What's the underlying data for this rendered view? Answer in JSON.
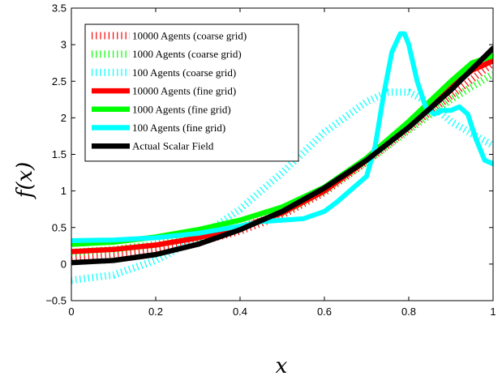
{
  "chart_data": {
    "type": "line",
    "xlabel": "x",
    "ylabel": "f(x)",
    "xlim": [
      0,
      1
    ],
    "ylim": [
      -0.5,
      3.5
    ],
    "xticks": [
      0,
      0.2,
      0.4,
      0.6,
      0.8,
      1
    ],
    "xtick_labels": [
      "0",
      "0.2",
      "0.4",
      "0.6",
      "0.8",
      "1"
    ],
    "yticks": [
      -0.5,
      0,
      0.5,
      1,
      1.5,
      2,
      2.5,
      3,
      3.5
    ],
    "ytick_labels": [
      "−0.5",
      "0",
      "0.5",
      "1",
      "1.5",
      "2",
      "2.5",
      "3",
      "3.5"
    ],
    "grid": false,
    "legend_position": "top-left",
    "series": [
      {
        "name": "10000 Agents (coarse grid)",
        "color": "#ff0000",
        "style": "dotted",
        "x": [
          0,
          0.1,
          0.2,
          0.3,
          0.4,
          0.5,
          0.6,
          0.7,
          0.8,
          0.9,
          1.0
        ],
        "y": [
          0.1,
          0.14,
          0.2,
          0.3,
          0.45,
          0.67,
          0.98,
          1.4,
          1.85,
          2.3,
          2.75
        ]
      },
      {
        "name": "1000 Agents (coarse grid)",
        "color": "#00ff00",
        "style": "dotted",
        "x": [
          0,
          0.1,
          0.2,
          0.3,
          0.4,
          0.5,
          0.6,
          0.7,
          0.8,
          0.9,
          1.0
        ],
        "y": [
          0.16,
          0.2,
          0.27,
          0.37,
          0.5,
          0.7,
          1.0,
          1.4,
          1.83,
          2.25,
          2.6
        ]
      },
      {
        "name": "100 Agents (coarse grid)",
        "color": "#00ffff",
        "style": "dotted",
        "x": [
          0,
          0.1,
          0.2,
          0.3,
          0.4,
          0.5,
          0.6,
          0.7,
          0.75,
          0.8,
          0.85,
          0.9,
          0.95,
          1.0
        ],
        "y": [
          -0.22,
          -0.15,
          0.05,
          0.35,
          0.75,
          1.25,
          1.8,
          2.22,
          2.35,
          2.35,
          2.2,
          1.95,
          1.78,
          1.62
        ]
      },
      {
        "name": "10000 Agents (fine grid)",
        "color": "#ff0000",
        "style": "solid",
        "x": [
          0,
          0.1,
          0.2,
          0.3,
          0.4,
          0.5,
          0.6,
          0.7,
          0.8,
          0.9,
          0.95,
          1.0
        ],
        "y": [
          0.17,
          0.2,
          0.26,
          0.36,
          0.5,
          0.7,
          1.0,
          1.42,
          1.92,
          2.42,
          2.65,
          2.78
        ]
      },
      {
        "name": "1000 Agents (fine grid)",
        "color": "#00ff00",
        "style": "solid",
        "x": [
          0,
          0.1,
          0.2,
          0.3,
          0.4,
          0.5,
          0.6,
          0.7,
          0.8,
          0.9,
          0.95,
          1.0
        ],
        "y": [
          0.27,
          0.3,
          0.37,
          0.47,
          0.6,
          0.78,
          1.05,
          1.45,
          1.95,
          2.5,
          2.75,
          2.85
        ]
      },
      {
        "name": "100 Agents (fine grid)",
        "color": "#00ffff",
        "style": "solid",
        "x": [
          0,
          0.1,
          0.2,
          0.3,
          0.4,
          0.45,
          0.5,
          0.55,
          0.6,
          0.63,
          0.66,
          0.68,
          0.7,
          0.72,
          0.74,
          0.76,
          0.78,
          0.79,
          0.8,
          0.82,
          0.84,
          0.86,
          0.88,
          0.9,
          0.92,
          0.94,
          0.96,
          0.98,
          1.0
        ],
        "y": [
          0.32,
          0.33,
          0.36,
          0.42,
          0.52,
          0.58,
          0.6,
          0.62,
          0.72,
          0.85,
          1.0,
          1.1,
          1.2,
          1.6,
          2.3,
          2.9,
          3.15,
          3.15,
          3.0,
          2.5,
          2.15,
          2.05,
          2.1,
          2.1,
          2.15,
          2.05,
          1.7,
          1.42,
          1.37
        ]
      },
      {
        "name": "Actual Scalar Field",
        "color": "#000000",
        "style": "solid",
        "x": [
          0,
          0.1,
          0.2,
          0.3,
          0.4,
          0.5,
          0.6,
          0.7,
          0.8,
          0.9,
          1.0
        ],
        "y": [
          0.02,
          0.05,
          0.13,
          0.27,
          0.47,
          0.72,
          1.04,
          1.42,
          1.87,
          2.38,
          2.95
        ]
      }
    ]
  }
}
